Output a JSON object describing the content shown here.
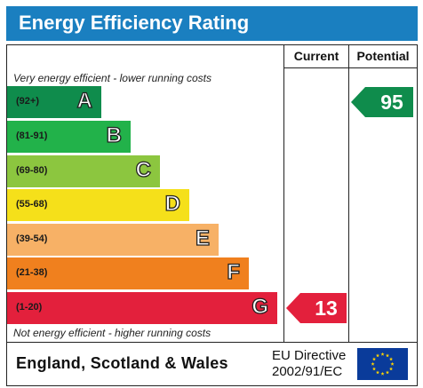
{
  "title": "Energy Efficiency Rating",
  "columns": {
    "current": "Current",
    "potential": "Potential"
  },
  "notes": {
    "top": "Very energy efficient - lower running costs",
    "bottom": "Not energy efficient - higher running costs"
  },
  "bands": [
    {
      "range": "(92+)",
      "letter": "A",
      "color": "#0f8c4c"
    },
    {
      "range": "(81-91)",
      "letter": "B",
      "color": "#22b24a"
    },
    {
      "range": "(69-80)",
      "letter": "C",
      "color": "#8cc63f"
    },
    {
      "range": "(55-68)",
      "letter": "D",
      "color": "#f5e01a"
    },
    {
      "range": "(39-54)",
      "letter": "E",
      "color": "#f7b166"
    },
    {
      "range": "(21-38)",
      "letter": "F",
      "color": "#f0801e"
    },
    {
      "range": "(1-20)",
      "letter": "G",
      "color": "#e3203c"
    }
  ],
  "ratings": {
    "current": {
      "value": "13",
      "band": "G",
      "color": "#e3203c"
    },
    "potential": {
      "value": "95",
      "band": "A",
      "color": "#0f8c4c"
    }
  },
  "footer": {
    "region": "England, Scotland & Wales",
    "directive_line1": "EU Directive",
    "directive_line2": "2002/91/EC"
  },
  "flag_icon": "eu-flag-icon"
}
